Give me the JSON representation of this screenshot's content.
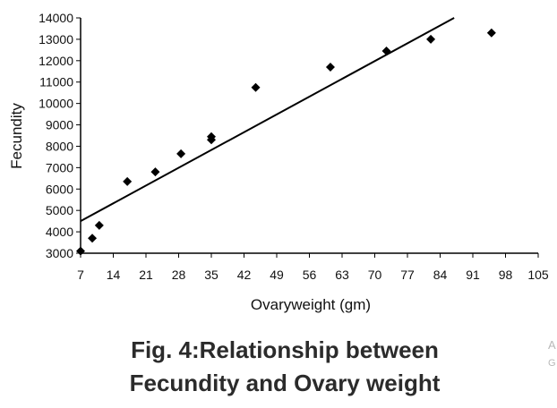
{
  "chart_data": {
    "type": "scatter",
    "xlabel": "Ovaryweight (gm)",
    "ylabel": "Fecundity",
    "xlim": [
      7,
      105
    ],
    "ylim": [
      3000,
      14000
    ],
    "x_ticks": [
      7,
      14,
      21,
      28,
      35,
      42,
      49,
      56,
      63,
      70,
      77,
      84,
      91,
      98,
      105
    ],
    "y_ticks": [
      3000,
      4000,
      5000,
      6000,
      7000,
      8000,
      9000,
      10000,
      11000,
      12000,
      13000,
      14000
    ],
    "points": [
      {
        "x": 7,
        "y": 3100
      },
      {
        "x": 9.5,
        "y": 3700
      },
      {
        "x": 11,
        "y": 4300
      },
      {
        "x": 17,
        "y": 6350
      },
      {
        "x": 23,
        "y": 6800
      },
      {
        "x": 28.5,
        "y": 7650
      },
      {
        "x": 35,
        "y": 8300
      },
      {
        "x": 35,
        "y": 8450
      },
      {
        "x": 44.5,
        "y": 10750
      },
      {
        "x": 60.5,
        "y": 11700
      },
      {
        "x": 72.5,
        "y": 12450
      },
      {
        "x": 82,
        "y": 13000
      },
      {
        "x": 95,
        "y": 13300
      }
    ],
    "trendline": {
      "x": [
        7,
        87
      ],
      "y": [
        4500,
        14000
      ]
    },
    "grid": false,
    "legend": "none"
  },
  "caption": {
    "line1": "Fig. 4:Relationship between",
    "line2": "Fecundity and Ovary weight"
  },
  "side_text": [
    "A",
    "G"
  ]
}
